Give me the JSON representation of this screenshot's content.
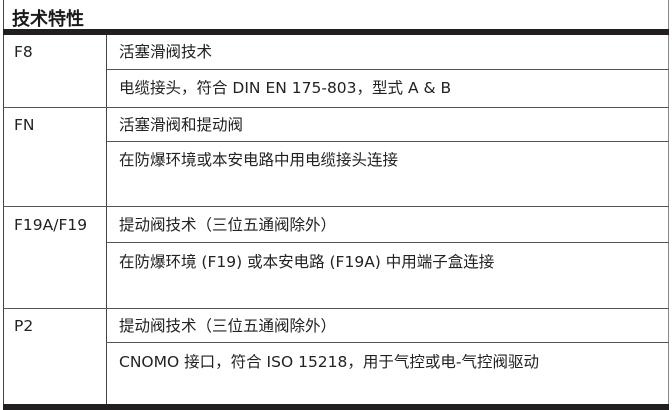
{
  "title": "技术特性",
  "rows": [
    {
      "key": "F8",
      "lines": [
        "活塞滑阀技术",
        "电缆接头，符合 DIN EN 175-803，型式 A & B"
      ]
    },
    {
      "key": "FN",
      "lines": [
        "活塞滑阀和提动阀",
        "在防爆环境或本安电路中用电缆接头连接"
      ]
    },
    {
      "key": "F19A/F19",
      "lines": [
        "提动阀技术（三位五通阀除外）",
        "在防爆环境 (F19) 或本安电路 (F19A) 中用端子盒连接"
      ]
    },
    {
      "key": "P2",
      "lines": [
        "提动阀技术（三位五通阀除外）",
        "CNOMO 接口，符合 ISO 15218，用于气控或电-气控阀驱动"
      ]
    }
  ]
}
